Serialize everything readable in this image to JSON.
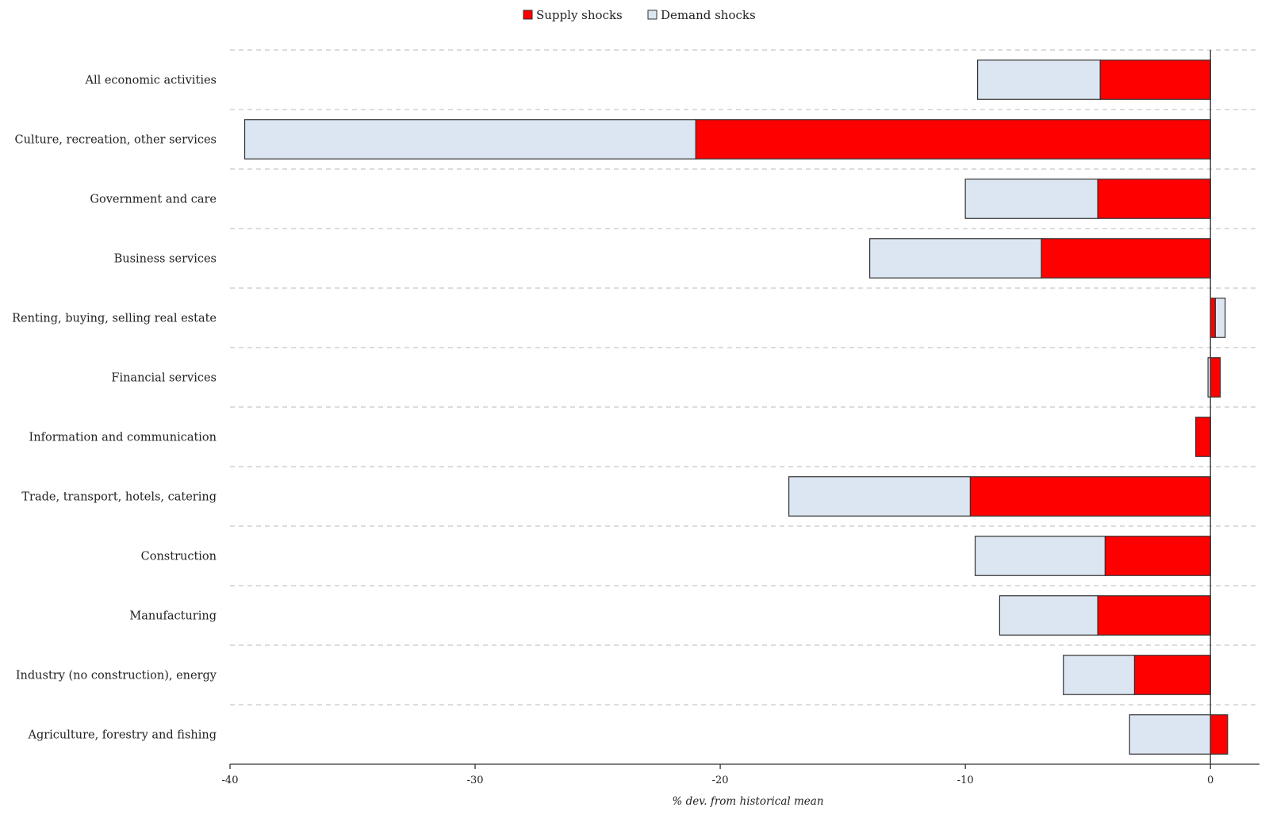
{
  "chart_data": {
    "type": "bar",
    "orientation": "horizontal",
    "stacked": true,
    "title": "",
    "xlabel": "% dev. from historical mean",
    "ylabel": "",
    "xlim": [
      -40,
      2
    ],
    "xticks": [
      -40,
      -30,
      -20,
      -10,
      0
    ],
    "grid": "horizontal-dashed",
    "legend_position": "top-center",
    "categories": [
      "All economic activities",
      "Culture, recreation, other services",
      "Government and care",
      "Business services",
      "Renting, buying, selling real estate",
      "Financial services",
      "Information and communication",
      "Trade, transport, hotels, catering",
      "Construction",
      "Manufacturing",
      "Industry (no construction), energy",
      "Agriculture, forestry and fishing"
    ],
    "series": [
      {
        "name": "Supply shocks",
        "color": "#ff0000",
        "values": [
          -4.5,
          -21.0,
          -4.6,
          -6.9,
          0.2,
          0.4,
          -0.6,
          -9.8,
          -4.3,
          -4.6,
          -3.1,
          0.7
        ]
      },
      {
        "name": "Demand shocks",
        "color": "#dce6f2",
        "values": [
          -5.0,
          -18.4,
          -5.4,
          -7.0,
          0.4,
          -0.1,
          0.0,
          -7.4,
          -5.3,
          -4.0,
          -2.9,
          -3.3
        ]
      }
    ]
  }
}
